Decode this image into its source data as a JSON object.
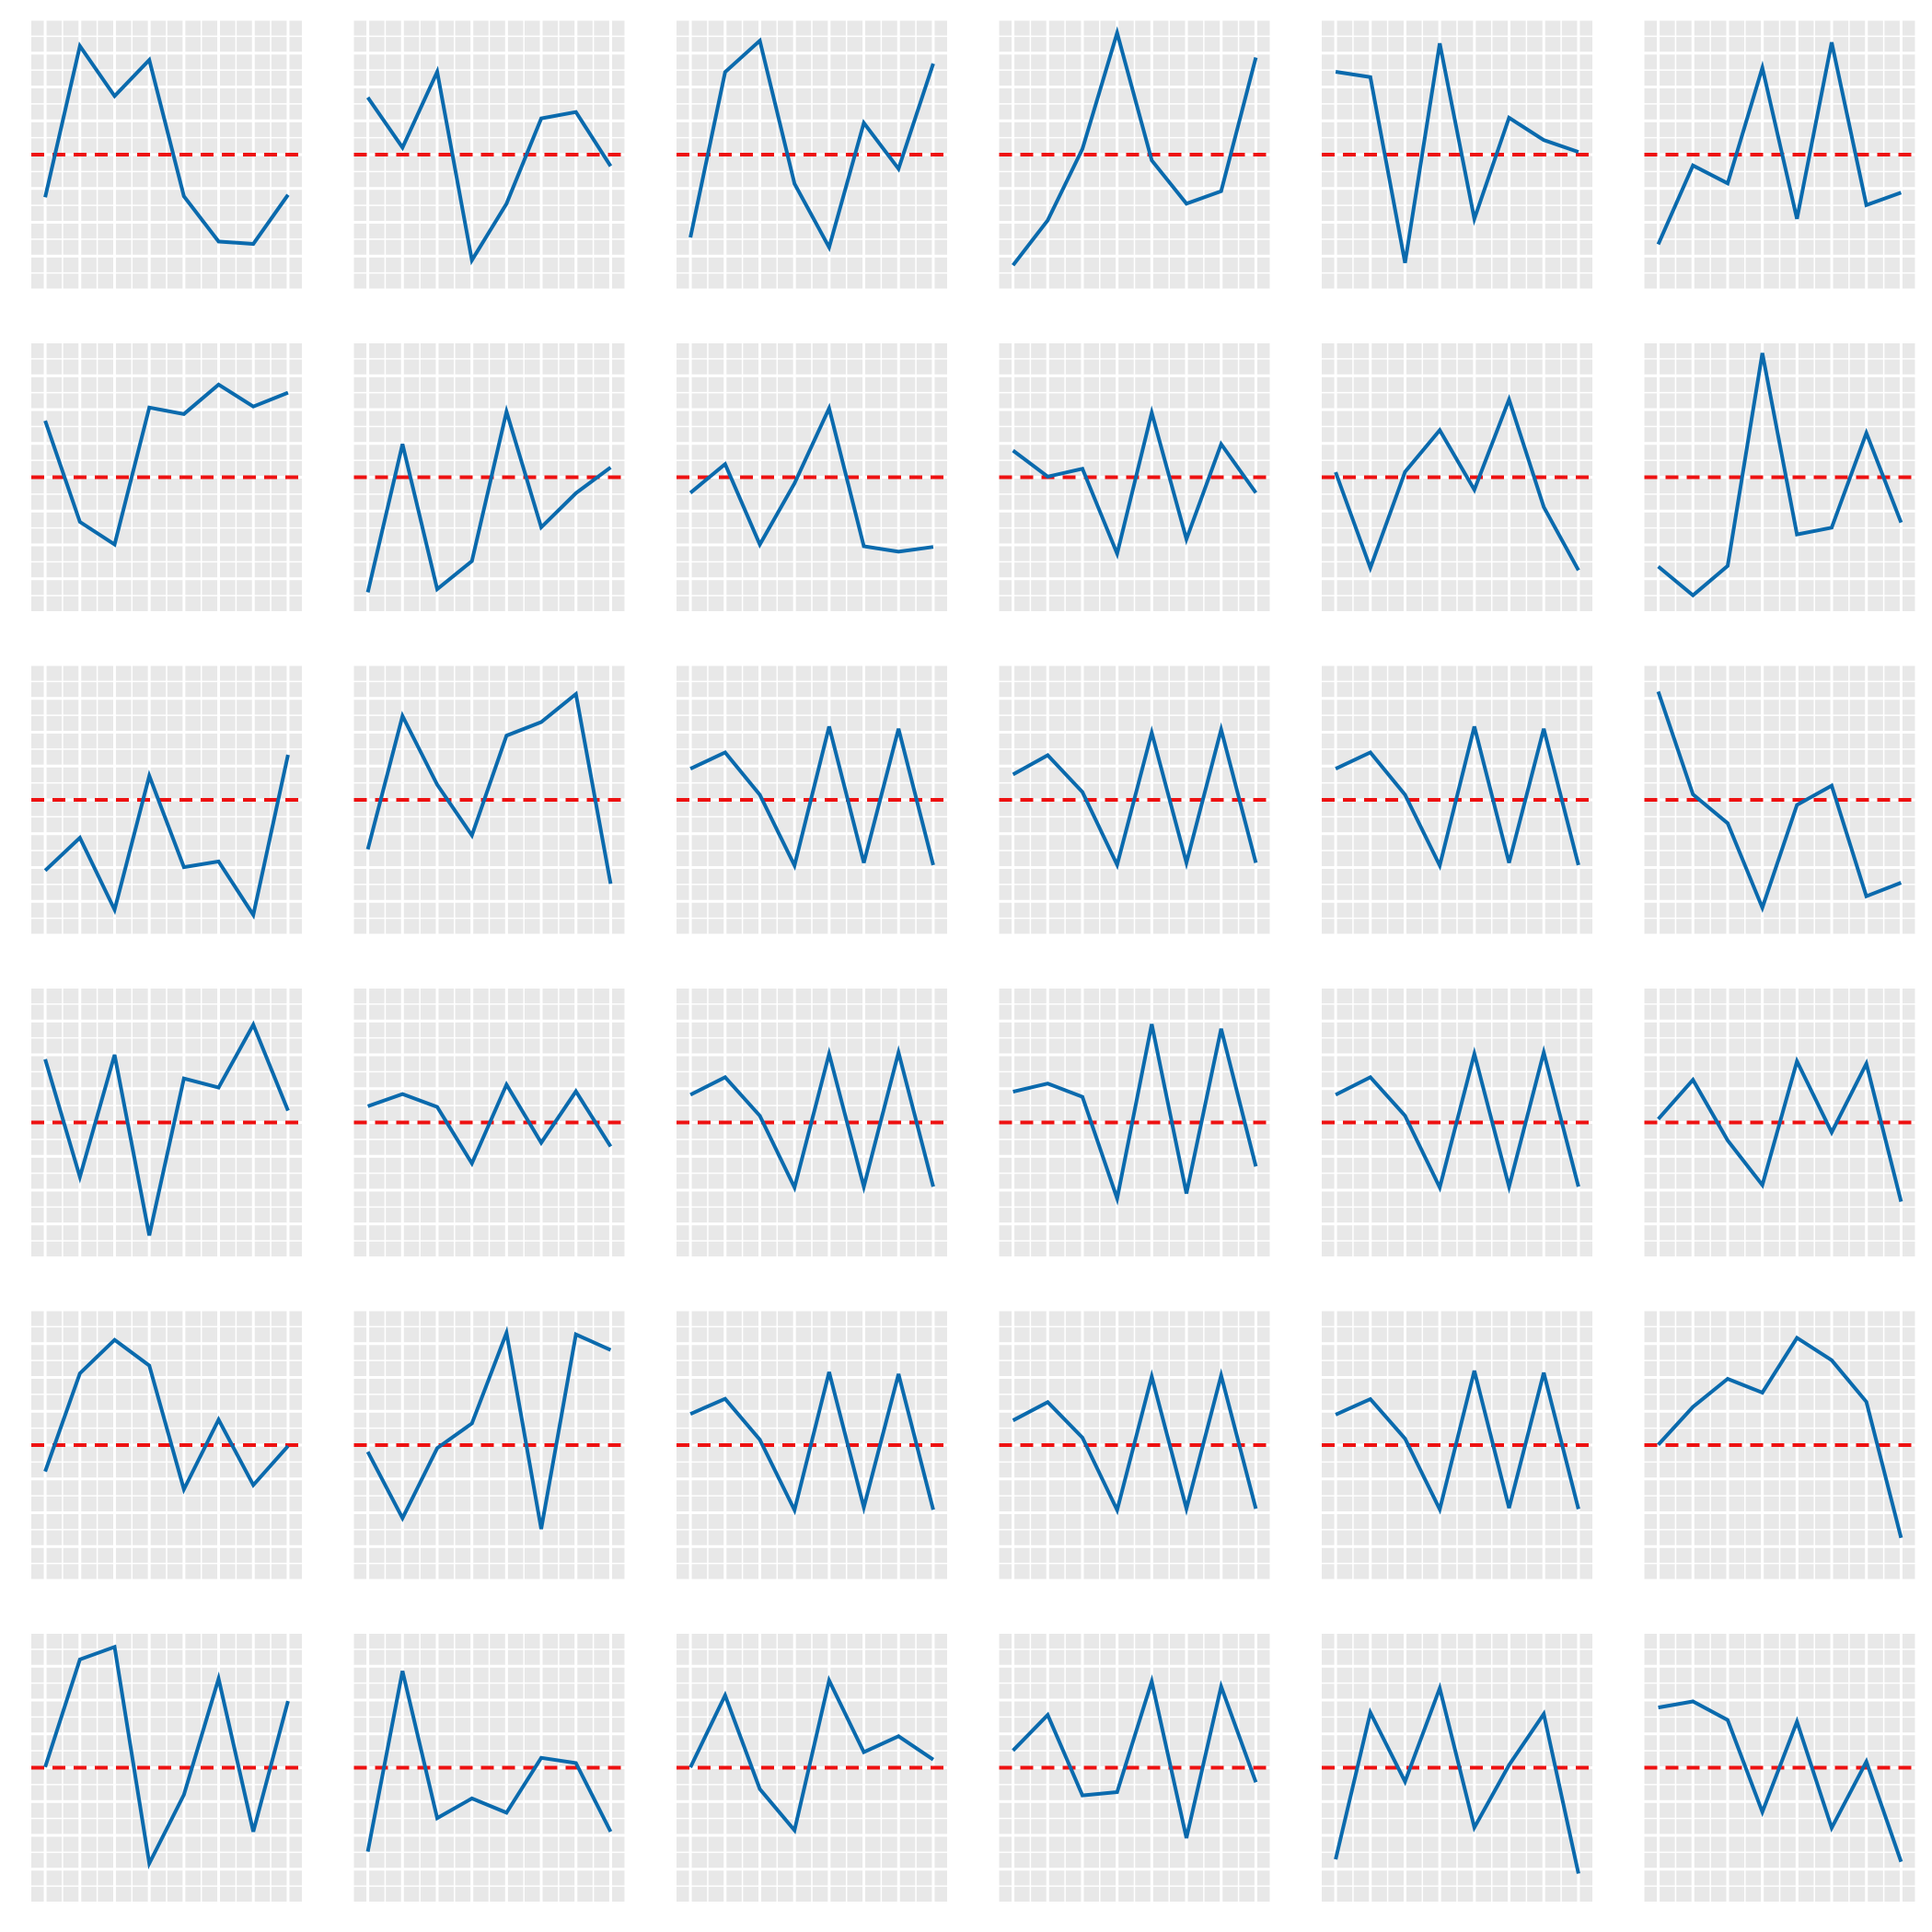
{
  "colors": {
    "panel_background": "#e8e8e8",
    "gridline": "#ffffff",
    "series_line": "#0a6aad",
    "reference_line": "#ee1111",
    "page_background": "#ffffff"
  },
  "chart_data": {
    "type": "line",
    "layout": {
      "rows": 6,
      "columns": 6
    },
    "title": "",
    "xlabel": "",
    "ylabel": "",
    "tick_labels_shown": false,
    "legend": "none",
    "grid": true,
    "x": [
      1,
      2,
      3,
      4,
      5,
      6,
      7,
      8
    ],
    "xlim": [
      0.6,
      8.4
    ],
    "ylim": [
      -4,
      4
    ],
    "reference_line": {
      "y": 0,
      "style": "dashed"
    },
    "panels": [
      {
        "values": [
          -1.26,
          3.21,
          1.73,
          2.8,
          -1.23,
          -2.57,
          -2.64,
          -1.19
        ]
      },
      {
        "values": [
          1.69,
          0.21,
          2.45,
          -3.12,
          -1.45,
          1.07,
          1.26,
          -0.34
        ]
      },
      {
        "values": [
          -2.45,
          2.44,
          3.37,
          -0.86,
          -2.74,
          0.94,
          -0.42,
          2.69
        ]
      },
      {
        "values": [
          -3.27,
          -1.94,
          0.17,
          3.6,
          -0.17,
          -1.45,
          -1.08,
          2.87
        ]
      },
      {
        "values": [
          2.45,
          2.29,
          -3.2,
          3.29,
          -1.9,
          1.09,
          0.43,
          0.08
        ]
      },
      {
        "values": [
          -2.65,
          -0.32,
          -0.85,
          2.57,
          -1.9,
          3.32,
          -1.49,
          -1.12
        ]
      },
      {
        "values": [
          1.67,
          -1.32,
          -1.99,
          2.06,
          1.87,
          2.74,
          2.09,
          2.5
        ]
      },
      {
        "values": [
          -3.4,
          0.98,
          -3.31,
          -2.48,
          1.94,
          -1.48,
          -0.47,
          0.29
        ]
      },
      {
        "values": [
          -0.46,
          0.39,
          -1.99,
          -0.18,
          2.04,
          -2.04,
          -2.2,
          -2.06
        ]
      },
      {
        "values": [
          0.79,
          0.02,
          0.25,
          -2.26,
          1.91,
          -1.83,
          0.98,
          -0.46
        ]
      },
      {
        "values": [
          0.15,
          -2.68,
          0.16,
          1.39,
          -0.37,
          2.3,
          -0.88,
          -2.75
        ]
      },
      {
        "values": [
          -2.64,
          -3.49,
          -2.62,
          3.67,
          -1.69,
          -1.49,
          1.31,
          -1.34
        ]
      },
      {
        "values": [
          -2.09,
          -1.12,
          -3.25,
          0.71,
          -1.99,
          -1.82,
          -3.4,
          1.33
        ]
      },
      {
        "values": [
          -1.46,
          2.48,
          0.45,
          -1.05,
          1.9,
          2.3,
          3.13,
          -2.48
        ]
      },
      {
        "values": [
          0.92,
          1.4,
          0.15,
          -1.94,
          2.17,
          -1.86,
          2.1,
          -1.93
        ]
      },
      {
        "values": [
          0.75,
          1.32,
          0.23,
          -1.92,
          1.99,
          -1.86,
          2.08,
          -1.86
        ]
      },
      {
        "values": [
          0.92,
          1.4,
          0.15,
          -1.94,
          2.17,
          -1.86,
          2.1,
          -1.93
        ]
      },
      {
        "values": [
          3.2,
          0.16,
          -0.69,
          -3.19,
          -0.15,
          0.42,
          -2.85,
          -2.45
        ]
      },
      {
        "values": [
          1.87,
          -1.61,
          2.0,
          -3.34,
          1.3,
          1.03,
          2.89,
          0.35
        ]
      },
      {
        "values": [
          0.48,
          0.84,
          0.46,
          -1.21,
          1.12,
          -0.6,
          0.92,
          -0.71
        ]
      },
      {
        "values": [
          0.82,
          1.34,
          0.2,
          -1.92,
          2.03,
          -1.9,
          2.07,
          -1.9
        ]
      },
      {
        "values": [
          0.91,
          1.15,
          0.76,
          -2.25,
          2.91,
          -2.1,
          2.77,
          -1.3
        ]
      },
      {
        "values": [
          0.82,
          1.34,
          0.2,
          -1.92,
          2.03,
          -1.9,
          2.07,
          -1.9
        ]
      },
      {
        "values": [
          0.1,
          1.26,
          -0.53,
          -1.85,
          1.81,
          -0.29,
          1.74,
          -2.34
        ]
      },
      {
        "values": [
          -0.78,
          2.12,
          3.11,
          2.35,
          -1.31,
          0.75,
          -1.18,
          -0.03
        ]
      },
      {
        "values": [
          -0.2,
          -2.16,
          -0.09,
          0.64,
          3.32,
          -2.48,
          3.27,
          2.81
        ]
      },
      {
        "values": [
          0.92,
          1.37,
          0.16,
          -1.92,
          2.16,
          -1.84,
          2.1,
          -1.91
        ]
      },
      {
        "values": [
          0.73,
          1.27,
          0.22,
          -1.92,
          2.03,
          -1.88,
          2.06,
          -1.88
        ]
      },
      {
        "values": [
          0.9,
          1.36,
          0.19,
          -1.9,
          2.2,
          -1.86,
          2.14,
          -1.89
        ]
      },
      {
        "values": [
          0.01,
          1.13,
          1.96,
          1.55,
          3.17,
          2.51,
          1.28,
          -2.74
        ]
      },
      {
        "values": [
          0.02,
          3.2,
          3.57,
          -2.83,
          -0.8,
          2.63,
          -1.89,
          1.97
        ]
      },
      {
        "values": [
          -2.48,
          2.86,
          -1.49,
          -0.91,
          -1.33,
          0.29,
          0.14,
          -1.89
        ]
      },
      {
        "values": [
          0.01,
          2.14,
          -0.63,
          -1.85,
          2.58,
          0.46,
          0.93,
          0.24
        ]
      },
      {
        "values": [
          0.51,
          1.56,
          -0.82,
          -0.72,
          2.55,
          -2.08,
          2.4,
          -0.43
        ]
      },
      {
        "values": [
          -2.71,
          1.63,
          -0.41,
          2.35,
          -1.77,
          0.08,
          1.59,
          -3.13
        ]
      },
      {
        "values": [
          1.78,
          1.96,
          1.41,
          -1.31,
          1.36,
          -1.78,
          0.18,
          -2.78
        ]
      }
    ]
  }
}
